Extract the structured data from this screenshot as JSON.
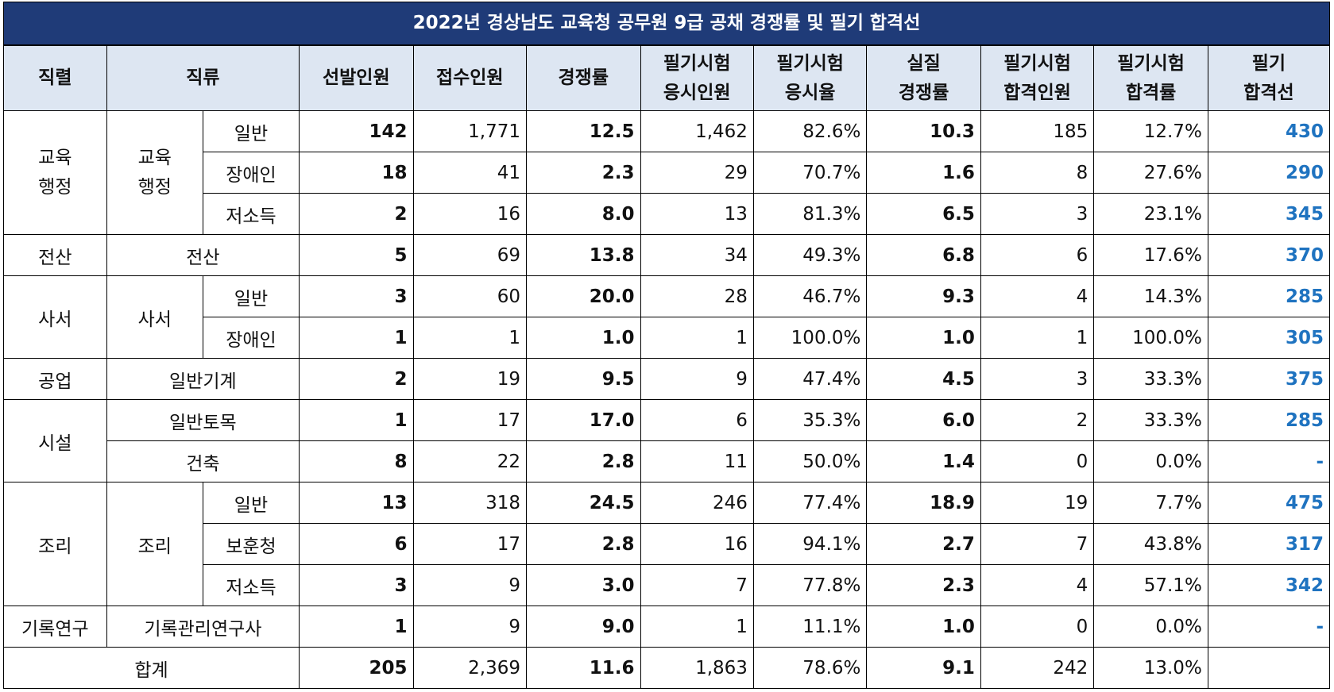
{
  "title": "2022년 경상남도 교육청 공무원 9급 공채 경쟁률 및 필기 합격선",
  "headers": {
    "series": "직렬",
    "class": "직류",
    "selected": "선발인원",
    "applied": "접수인원",
    "ratio": "경쟁률",
    "exam_takers_1": "필기시험",
    "exam_takers_2": "응시인원",
    "exam_rate_1": "필기시험",
    "exam_rate_2": "응시율",
    "real_ratio_1": "실질",
    "real_ratio_2": "경쟁률",
    "pass_count_1": "필기시험",
    "pass_count_2": "합격인원",
    "pass_rate_1": "필기시험",
    "pass_rate_2": "합격률",
    "cutoff_1": "필기",
    "cutoff_2": "합격선"
  },
  "groups": {
    "edu_admin_1": "교육",
    "edu_admin_2": "행정",
    "computing": "전산",
    "librarian": "사서",
    "industry": "공업",
    "facility": "시설",
    "cooking": "조리",
    "records": "기록연구"
  },
  "rows": [
    {
      "sub": "일반",
      "selected": "142",
      "applied": "1,771",
      "ratio": "12.5",
      "takers": "1,462",
      "take_rate": "82.6%",
      "real_ratio": "10.3",
      "passed": "185",
      "pass_rate": "12.7%",
      "cutoff": "430"
    },
    {
      "sub": "장애인",
      "selected": "18",
      "applied": "41",
      "ratio": "2.3",
      "takers": "29",
      "take_rate": "70.7%",
      "real_ratio": "1.6",
      "passed": "8",
      "pass_rate": "27.6%",
      "cutoff": "290"
    },
    {
      "sub": "저소득",
      "selected": "2",
      "applied": "16",
      "ratio": "8.0",
      "takers": "13",
      "take_rate": "81.3%",
      "real_ratio": "6.5",
      "passed": "3",
      "pass_rate": "23.1%",
      "cutoff": "345"
    },
    {
      "sub": "전산",
      "selected": "5",
      "applied": "69",
      "ratio": "13.8",
      "takers": "34",
      "take_rate": "49.3%",
      "real_ratio": "6.8",
      "passed": "6",
      "pass_rate": "17.6%",
      "cutoff": "370"
    },
    {
      "sub": "일반",
      "selected": "3",
      "applied": "60",
      "ratio": "20.0",
      "takers": "28",
      "take_rate": "46.7%",
      "real_ratio": "9.3",
      "passed": "4",
      "pass_rate": "14.3%",
      "cutoff": "285"
    },
    {
      "sub": "장애인",
      "selected": "1",
      "applied": "1",
      "ratio": "1.0",
      "takers": "1",
      "take_rate": "100.0%",
      "real_ratio": "1.0",
      "passed": "1",
      "pass_rate": "100.0%",
      "cutoff": "305"
    },
    {
      "sub": "일반기계",
      "selected": "2",
      "applied": "19",
      "ratio": "9.5",
      "takers": "9",
      "take_rate": "47.4%",
      "real_ratio": "4.5",
      "passed": "3",
      "pass_rate": "33.3%",
      "cutoff": "375"
    },
    {
      "sub": "일반토목",
      "selected": "1",
      "applied": "17",
      "ratio": "17.0",
      "takers": "6",
      "take_rate": "35.3%",
      "real_ratio": "6.0",
      "passed": "2",
      "pass_rate": "33.3%",
      "cutoff": "285"
    },
    {
      "sub": "건축",
      "selected": "8",
      "applied": "22",
      "ratio": "2.8",
      "takers": "11",
      "take_rate": "50.0%",
      "real_ratio": "1.4",
      "passed": "0",
      "pass_rate": "0.0%",
      "cutoff": "-"
    },
    {
      "sub": "일반",
      "selected": "13",
      "applied": "318",
      "ratio": "24.5",
      "takers": "246",
      "take_rate": "77.4%",
      "real_ratio": "18.9",
      "passed": "19",
      "pass_rate": "7.7%",
      "cutoff": "475"
    },
    {
      "sub": "보훈청",
      "selected": "6",
      "applied": "17",
      "ratio": "2.8",
      "takers": "16",
      "take_rate": "94.1%",
      "real_ratio": "2.7",
      "passed": "7",
      "pass_rate": "43.8%",
      "cutoff": "317"
    },
    {
      "sub": "저소득",
      "selected": "3",
      "applied": "9",
      "ratio": "3.0",
      "takers": "7",
      "take_rate": "77.8%",
      "real_ratio": "2.3",
      "passed": "4",
      "pass_rate": "57.1%",
      "cutoff": "342"
    },
    {
      "sub": "기록관리연구사",
      "selected": "1",
      "applied": "9",
      "ratio": "9.0",
      "takers": "1",
      "take_rate": "11.1%",
      "real_ratio": "1.0",
      "passed": "0",
      "pass_rate": "0.0%",
      "cutoff": "-"
    }
  ],
  "total": {
    "label": "합계",
    "selected": "205",
    "applied": "2,369",
    "ratio": "11.6",
    "takers": "1,863",
    "take_rate": "78.6%",
    "real_ratio": "9.1",
    "passed": "242",
    "pass_rate": "13.0%",
    "cutoff": ""
  }
}
